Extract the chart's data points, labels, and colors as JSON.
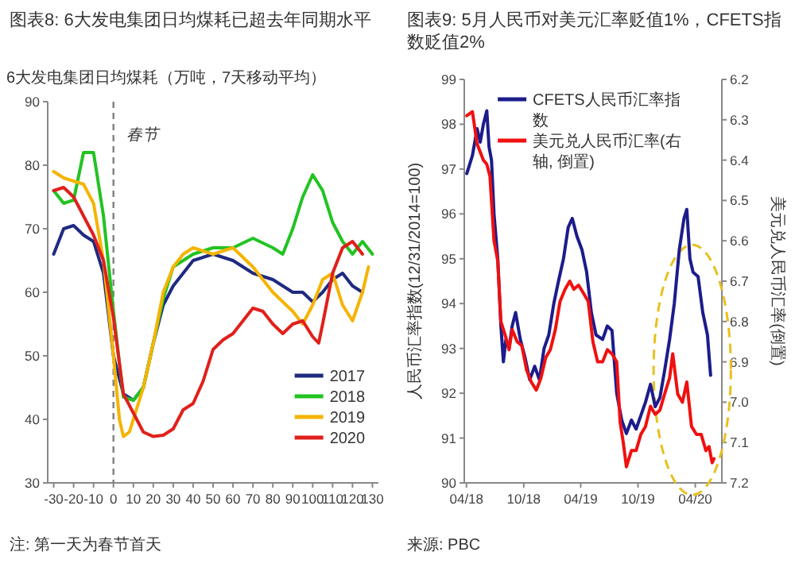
{
  "chart_data": [
    {
      "type": "line",
      "title": "图表8: 6大发电集团日均煤耗已超去年同期水平",
      "ylabel": "6大发电集团日均煤耗（万吨，7天移动平均）",
      "annotations": [
        "注: 第一天为春节首天"
      ],
      "xlim": [
        -33,
        133
      ],
      "xticks": [
        -30,
        -20,
        -10,
        0,
        10,
        20,
        30,
        40,
        50,
        60,
        70,
        80,
        90,
        100,
        110,
        120,
        130
      ],
      "ylim": [
        30,
        90
      ],
      "yticks": [
        30,
        40,
        50,
        60,
        70,
        80,
        90
      ],
      "ref_lines": [
        {
          "axis": "x",
          "value": 0,
          "label": "春节",
          "line_style": "dashed",
          "color": "#808080"
        }
      ],
      "legend": "bottom right",
      "series": [
        {
          "name": "2017",
          "color": "#1f2a80",
          "x": [
            -30,
            -25,
            -20,
            -15,
            -10,
            -5,
            0,
            5,
            10,
            15,
            20,
            25,
            30,
            35,
            40,
            50,
            60,
            70,
            80,
            90,
            95,
            100,
            105,
            110,
            115,
            120,
            125
          ],
          "values": [
            66,
            70,
            70.5,
            69,
            68,
            63,
            50,
            44,
            43,
            45,
            52,
            58,
            61,
            63,
            65,
            66,
            65,
            63,
            62,
            60,
            60,
            58.5,
            60,
            62,
            63,
            61,
            60
          ]
        },
        {
          "name": "2018",
          "color": "#22c322",
          "x": [
            -30,
            -25,
            -20,
            -15,
            -10,
            -5,
            0,
            5,
            10,
            15,
            20,
            25,
            30,
            40,
            50,
            60,
            70,
            80,
            85,
            90,
            95,
            100,
            105,
            110,
            115,
            120,
            125,
            130
          ],
          "values": [
            76,
            74,
            74.5,
            82,
            82,
            72,
            57,
            43.5,
            43,
            45,
            52,
            59,
            64,
            66,
            67,
            67,
            68.5,
            67,
            66,
            70,
            75,
            78.5,
            76,
            71,
            68,
            66,
            68,
            66
          ]
        },
        {
          "name": "2019",
          "color": "#f5b400",
          "x": [
            -30,
            -25,
            -20,
            -15,
            -10,
            -5,
            0,
            3,
            5,
            8,
            10,
            15,
            20,
            25,
            30,
            35,
            40,
            50,
            60,
            70,
            80,
            90,
            95,
            100,
            105,
            110,
            115,
            120,
            125,
            128
          ],
          "values": [
            79,
            78,
            77.5,
            77,
            74,
            65,
            50,
            40,
            37.3,
            38,
            40,
            45,
            52,
            60,
            64,
            66,
            67,
            66,
            67,
            64,
            60,
            57,
            55,
            58,
            62,
            63,
            58,
            55.5,
            60,
            64
          ]
        },
        {
          "name": "2020",
          "color": "#e0201b",
          "x": [
            -30,
            -25,
            -20,
            -15,
            -10,
            -5,
            0,
            5,
            10,
            15,
            20,
            25,
            30,
            35,
            40,
            45,
            50,
            55,
            60,
            65,
            70,
            75,
            80,
            85,
            90,
            95,
            100,
            103,
            105,
            110,
            115,
            120,
            125
          ],
          "values": [
            76,
            76.5,
            75,
            72,
            69,
            65,
            56,
            44,
            41,
            38,
            37.3,
            37.5,
            38.5,
            41.5,
            42.5,
            46,
            51,
            52.5,
            53.5,
            55.5,
            57.5,
            57,
            55,
            53.5,
            55,
            55.5,
            53,
            52,
            55,
            63,
            67,
            68,
            66
          ]
        }
      ]
    },
    {
      "type": "line",
      "title": "图表9: 5月人民币对美元汇率贬值1%，CFETS指数贬值2%",
      "ylabel": "人民币汇率指数(12/31/2014=100)",
      "y2label": "美元兑人民币汇率(倒置)",
      "annotations": [
        "来源: PBC"
      ],
      "xlim": [
        "2018-03-25",
        "2020-06-25"
      ],
      "xticks": [
        {
          "value": "2018-04",
          "label": "04/18"
        },
        {
          "value": "2018-10",
          "label": "10/18"
        },
        {
          "value": "2019-04",
          "label": "04/19"
        },
        {
          "value": "2019-10",
          "label": "10/19"
        },
        {
          "value": "2020-04",
          "label": "04/20"
        }
      ],
      "ylim": [
        90,
        99
      ],
      "yticks": [
        90,
        91,
        92,
        93,
        94,
        95,
        96,
        97,
        98,
        99
      ],
      "y2lim": [
        7.2,
        6.2
      ],
      "y2ticks": [
        6.2,
        6.3,
        6.4,
        6.5,
        6.6,
        6.7,
        6.8,
        6.9,
        {
          "value": 7,
          "label": "7.0"
        },
        7.1,
        7.2
      ],
      "legend": "top left",
      "series": [
        {
          "name": "CFETS人民币汇率指数",
          "color": "#1c1c8c",
          "x": [
            "2018-04-02",
            "2018-04-20",
            "2018-05-05",
            "2018-05-15",
            "2018-05-25",
            "2018-06-05",
            "2018-06-12",
            "2018-06-20",
            "2018-06-28",
            "2018-07-10",
            "2018-07-20",
            "2018-07-28",
            "2018-08-05",
            "2018-08-15",
            "2018-08-25",
            "2018-09-05",
            "2018-09-20",
            "2018-10-05",
            "2018-10-20",
            "2018-11-05",
            "2018-11-20",
            "2018-12-05",
            "2018-12-20",
            "2019-01-05",
            "2019-01-20",
            "2019-02-05",
            "2019-02-20",
            "2019-03-05",
            "2019-03-20",
            "2019-04-05",
            "2019-04-20",
            "2019-05-05",
            "2019-05-20",
            "2019-06-10",
            "2019-06-25",
            "2019-07-10",
            "2019-07-25",
            "2019-08-10",
            "2019-08-25",
            "2019-09-10",
            "2019-09-25",
            "2019-10-10",
            "2019-10-25",
            "2019-11-10",
            "2019-11-25",
            "2019-12-10",
            "2019-12-25",
            "2020-01-10",
            "2020-01-25",
            "2020-02-10",
            "2020-02-25",
            "2020-03-05",
            "2020-03-15",
            "2020-03-25",
            "2020-04-10",
            "2020-04-25",
            "2020-05-10",
            "2020-05-20"
          ],
          "values": [
            96.9,
            97.3,
            97.9,
            97.6,
            98,
            98.3,
            97.5,
            97.2,
            96,
            95,
            93.5,
            92.7,
            93.2,
            93,
            93.5,
            93.8,
            93.2,
            92.8,
            92.3,
            92.6,
            92.3,
            93,
            93.3,
            94,
            94.5,
            95,
            95.7,
            95.9,
            95.5,
            95.2,
            94.7,
            93.8,
            93.3,
            93.2,
            93.5,
            93.4,
            92,
            91.4,
            91.1,
            91.4,
            91.2,
            91.5,
            91.8,
            92.2,
            91.7,
            91.9,
            92.5,
            93.2,
            94,
            95.2,
            95.9,
            96.1,
            95,
            94.7,
            94.6,
            93.8,
            93.3,
            92.4
          ]
        },
        {
          "name": "美元兑人民币汇率(右轴, 倒置)",
          "color": "#f01010",
          "axis": "y2",
          "x": [
            "2018-04-02",
            "2018-04-20",
            "2018-05-05",
            "2018-05-15",
            "2018-05-25",
            "2018-06-05",
            "2018-06-15",
            "2018-06-28",
            "2018-07-10",
            "2018-07-20",
            "2018-08-05",
            "2018-08-15",
            "2018-08-25",
            "2018-09-10",
            "2018-09-25",
            "2018-10-10",
            "2018-10-25",
            "2018-11-10",
            "2018-11-25",
            "2018-12-10",
            "2018-12-25",
            "2019-01-10",
            "2019-01-25",
            "2019-02-10",
            "2019-02-25",
            "2019-03-10",
            "2019-03-25",
            "2019-04-10",
            "2019-04-25",
            "2019-05-10",
            "2019-05-25",
            "2019-06-10",
            "2019-06-25",
            "2019-07-10",
            "2019-07-25",
            "2019-08-05",
            "2019-08-15",
            "2019-08-25",
            "2019-09-10",
            "2019-09-25",
            "2019-10-10",
            "2019-10-25",
            "2019-11-10",
            "2019-11-25",
            "2019-12-10",
            "2019-12-25",
            "2020-01-10",
            "2020-01-20",
            "2020-02-05",
            "2020-02-20",
            "2020-03-05",
            "2020-03-20",
            "2020-04-05",
            "2020-04-20",
            "2020-05-05",
            "2020-05-15",
            "2020-05-25",
            "2020-05-31"
          ],
          "values": [
            6.29,
            6.28,
            6.36,
            6.38,
            6.4,
            6.41,
            6.44,
            6.6,
            6.65,
            6.8,
            6.84,
            6.87,
            6.82,
            6.85,
            6.86,
            6.92,
            6.95,
            6.97,
            6.94,
            6.89,
            6.87,
            6.82,
            6.75,
            6.72,
            6.7,
            6.72,
            6.71,
            6.73,
            6.75,
            6.85,
            6.9,
            6.9,
            6.87,
            6.88,
            6.9,
            7.05,
            7.1,
            7.16,
            7.12,
            7.12,
            7.08,
            7.06,
            7.01,
            7.03,
            7.02,
            6.98,
            6.94,
            6.88,
            6.98,
            7,
            6.95,
            7.06,
            7.08,
            7.08,
            7.12,
            7.11,
            7.15,
            7.14
          ]
        }
      ]
    }
  ]
}
